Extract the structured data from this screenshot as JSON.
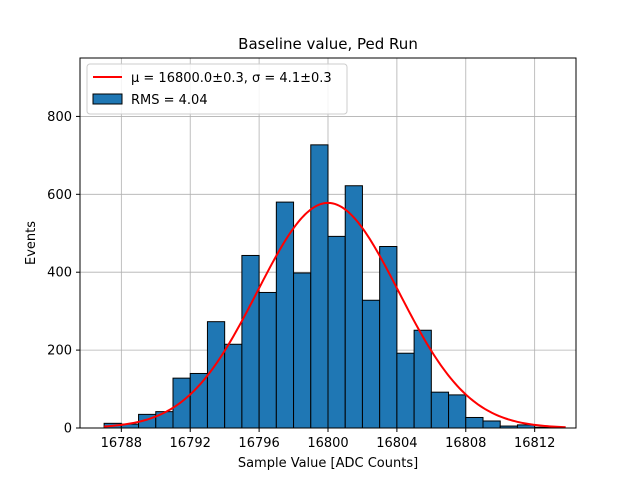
{
  "chart_data": {
    "type": "bar",
    "title": "Baseline value, Ped Run",
    "xlabel": "Sample Value [ADC Counts]",
    "ylabel": "Events",
    "xlim": [
      16785.6,
      16814.4
    ],
    "ylim": [
      0,
      950
    ],
    "xticks": [
      16788,
      16792,
      16796,
      16800,
      16804,
      16808,
      16812
    ],
    "yticks": [
      0,
      200,
      400,
      600,
      800
    ],
    "grid": true,
    "legend_position": "top-left",
    "bin_width": 1,
    "bins": [
      {
        "x": 16787.5,
        "y": 12
      },
      {
        "x": 16788.5,
        "y": 10
      },
      {
        "x": 16789.5,
        "y": 35
      },
      {
        "x": 16790.5,
        "y": 42
      },
      {
        "x": 16791.5,
        "y": 128
      },
      {
        "x": 16792.5,
        "y": 140
      },
      {
        "x": 16793.5,
        "y": 273
      },
      {
        "x": 16794.5,
        "y": 215
      },
      {
        "x": 16795.5,
        "y": 443
      },
      {
        "x": 16796.5,
        "y": 348
      },
      {
        "x": 16797.5,
        "y": 580
      },
      {
        "x": 16798.5,
        "y": 398
      },
      {
        "x": 16799.5,
        "y": 727
      },
      {
        "x": 16800.5,
        "y": 492
      },
      {
        "x": 16801.5,
        "y": 622
      },
      {
        "x": 16802.5,
        "y": 328
      },
      {
        "x": 16803.5,
        "y": 466
      },
      {
        "x": 16804.5,
        "y": 192
      },
      {
        "x": 16805.5,
        "y": 251
      },
      {
        "x": 16806.5,
        "y": 92
      },
      {
        "x": 16807.5,
        "y": 85
      },
      {
        "x": 16808.5,
        "y": 27
      },
      {
        "x": 16809.5,
        "y": 18
      },
      {
        "x": 16810.5,
        "y": 5
      },
      {
        "x": 16811.5,
        "y": 8
      },
      {
        "x": 16812.5,
        "y": 2
      }
    ],
    "fit": {
      "mu": 16800.0,
      "sigma": 4.1,
      "amplitude": 578,
      "x_range": [
        16787,
        16813.8
      ]
    },
    "series": [
      {
        "name": "RMS = 4.04",
        "kind": "histogram",
        "color": "#1f77b4"
      },
      {
        "name": "μ = 16800.0±0.3, σ = 4.1±0.3",
        "kind": "line",
        "color": "#ff0000"
      }
    ],
    "legend": {
      "fit_label": "μ = 16800.0±0.3, σ = 4.1±0.3",
      "hist_label": "RMS = 4.04"
    }
  }
}
